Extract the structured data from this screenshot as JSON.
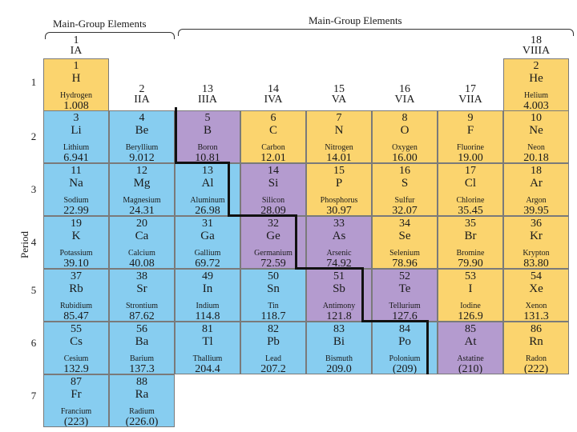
{
  "headers": {
    "left": "Main-Group Elements",
    "right": "Main-Group Elements"
  },
  "axis_label": "Period",
  "colors": {
    "metal": "#87cdf0",
    "nonmetal": "#fbd46e",
    "metalloid": "#b49bcf",
    "staircase": "#111111"
  },
  "groups": [
    {
      "num": "1",
      "roman": "IA"
    },
    {
      "num": "2",
      "roman": "IIA"
    },
    {
      "num": "13",
      "roman": "IIIA"
    },
    {
      "num": "14",
      "roman": "IVA"
    },
    {
      "num": "15",
      "roman": "VA"
    },
    {
      "num": "16",
      "roman": "VIA"
    },
    {
      "num": "17",
      "roman": "VIIA"
    },
    {
      "num": "18",
      "roman": "VIIIA"
    }
  ],
  "periods": [
    "1",
    "2",
    "3",
    "4",
    "5",
    "6",
    "7"
  ],
  "elements": [
    {
      "number": "1",
      "symbol": "H",
      "name": "Hydrogen",
      "mass": "1.008",
      "type": "nonmetal",
      "period": 1,
      "column": 1
    },
    {
      "number": "2",
      "symbol": "He",
      "name": "Helium",
      "mass": "4.003",
      "type": "nonmetal",
      "period": 1,
      "column": 8
    },
    {
      "number": "3",
      "symbol": "Li",
      "name": "Lithium",
      "mass": "6.941",
      "type": "metal",
      "period": 2,
      "column": 1
    },
    {
      "number": "4",
      "symbol": "Be",
      "name": "Beryllium",
      "mass": "9.012",
      "type": "metal",
      "period": 2,
      "column": 2
    },
    {
      "number": "5",
      "symbol": "B",
      "name": "Boron",
      "mass": "10.81",
      "type": "metalloid",
      "period": 2,
      "column": 3
    },
    {
      "number": "6",
      "symbol": "C",
      "name": "Carbon",
      "mass": "12.01",
      "type": "nonmetal",
      "period": 2,
      "column": 4
    },
    {
      "number": "7",
      "symbol": "N",
      "name": "Nitrogen",
      "mass": "14.01",
      "type": "nonmetal",
      "period": 2,
      "column": 5
    },
    {
      "number": "8",
      "symbol": "O",
      "name": "Oxygen",
      "mass": "16.00",
      "type": "nonmetal",
      "period": 2,
      "column": 6
    },
    {
      "number": "9",
      "symbol": "F",
      "name": "Fluorine",
      "mass": "19.00",
      "type": "nonmetal",
      "period": 2,
      "column": 7
    },
    {
      "number": "10",
      "symbol": "Ne",
      "name": "Neon",
      "mass": "20.18",
      "type": "nonmetal",
      "period": 2,
      "column": 8
    },
    {
      "number": "11",
      "symbol": "Na",
      "name": "Sodium",
      "mass": "22.99",
      "type": "metal",
      "period": 3,
      "column": 1
    },
    {
      "number": "12",
      "symbol": "Mg",
      "name": "Magnesium",
      "mass": "24.31",
      "type": "metal",
      "period": 3,
      "column": 2
    },
    {
      "number": "13",
      "symbol": "Al",
      "name": "Aluminum",
      "mass": "26.98",
      "type": "metal",
      "period": 3,
      "column": 3
    },
    {
      "number": "14",
      "symbol": "Si",
      "name": "Silicon",
      "mass": "28.09",
      "type": "metalloid",
      "period": 3,
      "column": 4
    },
    {
      "number": "15",
      "symbol": "P",
      "name": "Phosphorus",
      "mass": "30.97",
      "type": "nonmetal",
      "period": 3,
      "column": 5
    },
    {
      "number": "16",
      "symbol": "S",
      "name": "Sulfur",
      "mass": "32.07",
      "type": "nonmetal",
      "period": 3,
      "column": 6
    },
    {
      "number": "17",
      "symbol": "Cl",
      "name": "Chlorine",
      "mass": "35.45",
      "type": "nonmetal",
      "period": 3,
      "column": 7
    },
    {
      "number": "18",
      "symbol": "Ar",
      "name": "Argon",
      "mass": "39.95",
      "type": "nonmetal",
      "period": 3,
      "column": 8
    },
    {
      "number": "19",
      "symbol": "K",
      "name": "Potassium",
      "mass": "39.10",
      "type": "metal",
      "period": 4,
      "column": 1
    },
    {
      "number": "20",
      "symbol": "Ca",
      "name": "Calcium",
      "mass": "40.08",
      "type": "metal",
      "period": 4,
      "column": 2
    },
    {
      "number": "31",
      "symbol": "Ga",
      "name": "Gallium",
      "mass": "69.72",
      "type": "metal",
      "period": 4,
      "column": 3
    },
    {
      "number": "32",
      "symbol": "Ge",
      "name": "Germanium",
      "mass": "72.59",
      "type": "metalloid",
      "period": 4,
      "column": 4
    },
    {
      "number": "33",
      "symbol": "As",
      "name": "Arsenic",
      "mass": "74.92",
      "type": "metalloid",
      "period": 4,
      "column": 5
    },
    {
      "number": "34",
      "symbol": "Se",
      "name": "Selenium",
      "mass": "78.96",
      "type": "nonmetal",
      "period": 4,
      "column": 6
    },
    {
      "number": "35",
      "symbol": "Br",
      "name": "Bromine",
      "mass": "79.90",
      "type": "nonmetal",
      "period": 4,
      "column": 7
    },
    {
      "number": "36",
      "symbol": "Kr",
      "name": "Krypton",
      "mass": "83.80",
      "type": "nonmetal",
      "period": 4,
      "column": 8
    },
    {
      "number": "37",
      "symbol": "Rb",
      "name": "Rubidium",
      "mass": "85.47",
      "type": "metal",
      "period": 5,
      "column": 1
    },
    {
      "number": "38",
      "symbol": "Sr",
      "name": "Strontium",
      "mass": "87.62",
      "type": "metal",
      "period": 5,
      "column": 2
    },
    {
      "number": "49",
      "symbol": "In",
      "name": "Indium",
      "mass": "114.8",
      "type": "metal",
      "period": 5,
      "column": 3
    },
    {
      "number": "50",
      "symbol": "Sn",
      "name": "Tin",
      "mass": "118.7",
      "type": "metal",
      "period": 5,
      "column": 4
    },
    {
      "number": "51",
      "symbol": "Sb",
      "name": "Antimony",
      "mass": "121.8",
      "type": "metalloid",
      "period": 5,
      "column": 5
    },
    {
      "number": "52",
      "symbol": "Te",
      "name": "Tellurium",
      "mass": "127.6",
      "type": "metalloid",
      "period": 5,
      "column": 6
    },
    {
      "number": "53",
      "symbol": "I",
      "name": "Iodine",
      "mass": "126.9",
      "type": "nonmetal",
      "period": 5,
      "column": 7
    },
    {
      "number": "54",
      "symbol": "Xe",
      "name": "Xenon",
      "mass": "131.3",
      "type": "nonmetal",
      "period": 5,
      "column": 8
    },
    {
      "number": "55",
      "symbol": "Cs",
      "name": "Cesium",
      "mass": "132.9",
      "type": "metal",
      "period": 6,
      "column": 1
    },
    {
      "number": "56",
      "symbol": "Ba",
      "name": "Barium",
      "mass": "137.3",
      "type": "metal",
      "period": 6,
      "column": 2
    },
    {
      "number": "81",
      "symbol": "Tl",
      "name": "Thallium",
      "mass": "204.4",
      "type": "metal",
      "period": 6,
      "column": 3
    },
    {
      "number": "82",
      "symbol": "Pb",
      "name": "Lead",
      "mass": "207.2",
      "type": "metal",
      "period": 6,
      "column": 4
    },
    {
      "number": "83",
      "symbol": "Bi",
      "name": "Bismuth",
      "mass": "209.0",
      "type": "metal",
      "period": 6,
      "column": 5
    },
    {
      "number": "84",
      "symbol": "Po",
      "name": "Polonium",
      "mass": "(209)",
      "type": "metal",
      "period": 6,
      "column": 6
    },
    {
      "number": "85",
      "symbol": "At",
      "name": "Astatine",
      "mass": "(210)",
      "type": "metalloid",
      "period": 6,
      "column": 7
    },
    {
      "number": "86",
      "symbol": "Rn",
      "name": "Radon",
      "mass": "(222)",
      "type": "nonmetal",
      "period": 6,
      "column": 8
    },
    {
      "number": "87",
      "symbol": "Fr",
      "name": "Francium",
      "mass": "(223)",
      "type": "metal",
      "period": 7,
      "column": 1
    },
    {
      "number": "88",
      "symbol": "Ra",
      "name": "Radium",
      "mass": "(226.0)",
      "type": "metal",
      "period": 7,
      "column": 2
    }
  ]
}
